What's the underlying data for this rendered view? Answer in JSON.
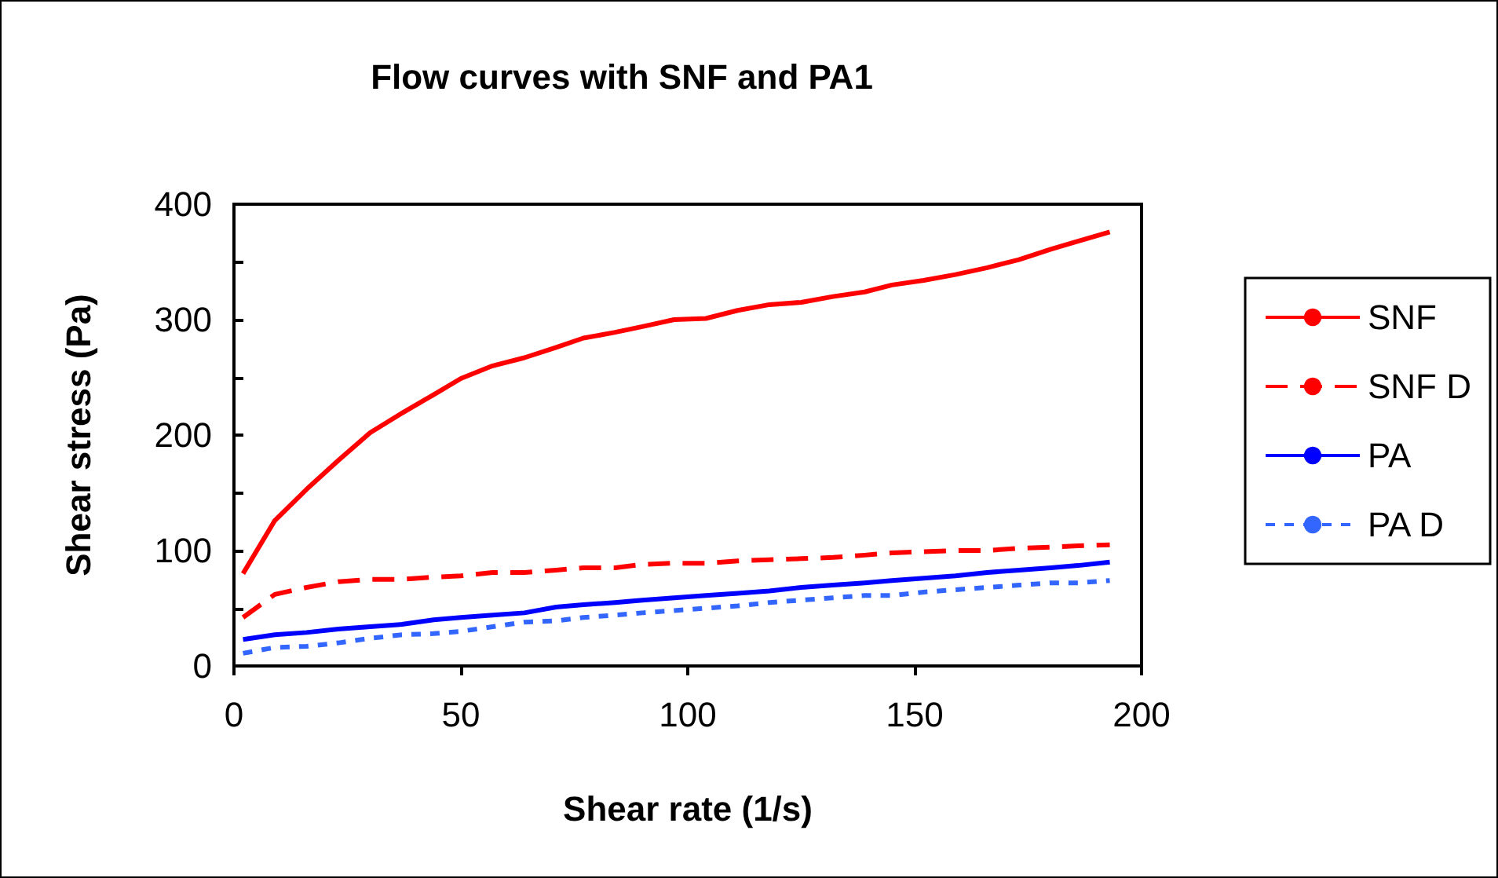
{
  "chart_data": {
    "type": "line",
    "title": "Flow curves with SNF and PA1",
    "xlabel": "Shear rate (1/s)",
    "ylabel": "Shear stress (Pa)",
    "x": [
      2,
      9,
      16,
      23,
      30,
      37,
      44,
      50,
      57,
      64,
      71,
      77,
      84,
      90,
      97,
      104,
      111,
      118,
      125,
      132,
      139,
      145,
      152,
      159,
      166,
      173,
      180,
      186,
      193
    ],
    "series": [
      {
        "name": "SNF",
        "color": "#ff0000",
        "line_style": "solid",
        "values": [
          80,
          126,
          153,
          178,
          202,
          219,
          235,
          249,
          260,
          267,
          276,
          284,
          289,
          294,
          300,
          301,
          308,
          313,
          315,
          320,
          324,
          330,
          334,
          339,
          345,
          352,
          361,
          368,
          376
        ]
      },
      {
        "name": "SNF D",
        "color": "#ff0000",
        "line_style": "dashed",
        "values": [
          42,
          62,
          68,
          73,
          75,
          75,
          77,
          78,
          81,
          81,
          83,
          85,
          85,
          88,
          89,
          89,
          91,
          92,
          93,
          94,
          96,
          98,
          99,
          100,
          100,
          102,
          103,
          104,
          105
        ]
      },
      {
        "name": "PA",
        "color": "#0000ff",
        "line_style": "solid",
        "values": [
          23,
          27,
          29,
          32,
          34,
          36,
          40,
          42,
          44,
          46,
          51,
          53,
          55,
          57,
          59,
          61,
          63,
          65,
          68,
          70,
          72,
          74,
          76,
          78,
          81,
          83,
          85,
          87,
          90
        ]
      },
      {
        "name": "PA D",
        "color": "#3366ff",
        "line_style": "dotted",
        "values": [
          11,
          16,
          17,
          20,
          24,
          27,
          28,
          30,
          34,
          38,
          39,
          42,
          44,
          46,
          48,
          50,
          52,
          55,
          57,
          59,
          61,
          61,
          64,
          66,
          68,
          70,
          72,
          72,
          74
        ]
      }
    ],
    "xlim": [
      0,
      200
    ],
    "xticks": [
      0,
      50,
      100,
      150,
      200
    ],
    "ylim": [
      0,
      400
    ],
    "yticks": [
      0,
      {
        "value": 50,
        "label": null
      },
      100,
      {
        "value": 150,
        "label": null
      },
      200,
      {
        "value": 250,
        "label": null
      },
      300,
      {
        "value": 350,
        "label": null
      },
      400
    ],
    "grid": false,
    "legend": "right",
    "marker": "none"
  }
}
